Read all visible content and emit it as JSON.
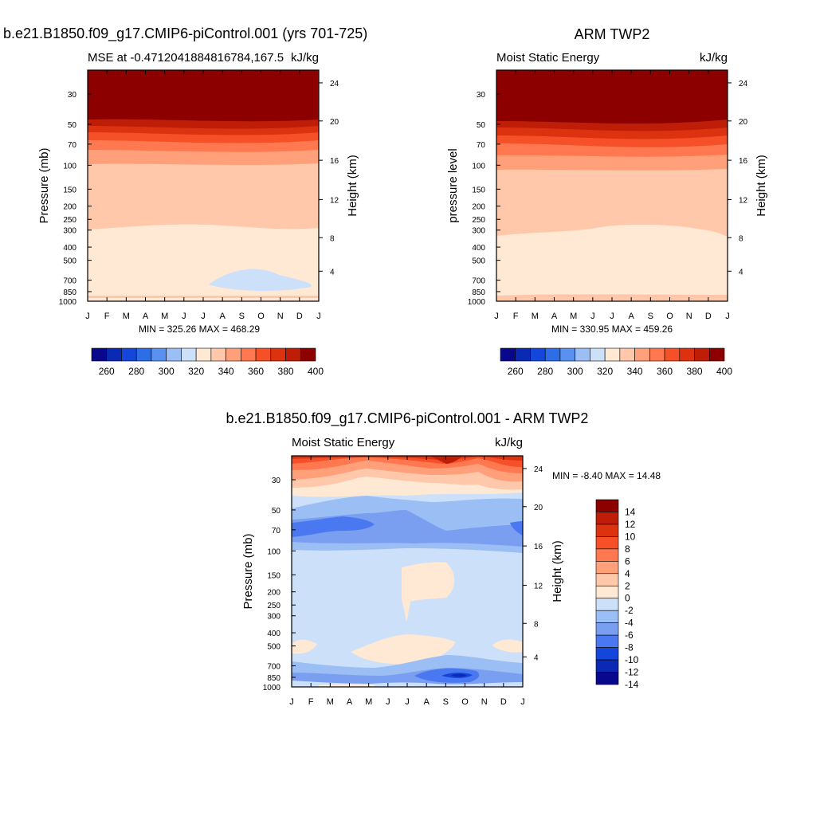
{
  "chart_data": [
    {
      "type": "heatmap",
      "title": "b.e21.B1850.f09_g17.CMIP6-piControl.001 (yrs 701-725)",
      "subtitle_left": "MSE at -0.4712041884816784,167.5",
      "subtitle_right": "kJ/kg",
      "ylabel": "Pressure (mb)",
      "y2label": "Height (km)",
      "x_ticks": [
        "J",
        "F",
        "M",
        "A",
        "M",
        "J",
        "J",
        "A",
        "S",
        "O",
        "N",
        "D",
        "J"
      ],
      "y_ticks": [
        "30",
        "50",
        "70",
        "100",
        "150",
        "200",
        "250",
        "300",
        "400",
        "500",
        "700",
        "850",
        "1000"
      ],
      "y2_ticks": [
        "24",
        "20",
        "16",
        "12",
        "8",
        "4"
      ],
      "stats": "MIN = 325.26 MAX = 468.29",
      "min": 325.26,
      "max": 468.29,
      "colorbar": {
        "labels": [
          "260",
          "280",
          "300",
          "320",
          "340",
          "360",
          "380",
          "400"
        ],
        "levels": [
          250,
          260,
          270,
          280,
          290,
          300,
          310,
          320,
          330,
          340,
          350,
          360,
          370,
          380,
          390,
          400,
          410
        ],
        "colors": [
          "#08088c",
          "#0a2ab4",
          "#1446dc",
          "#2d6ee6",
          "#5a91f0",
          "#9bbef5",
          "#cde0f9",
          "#ffe8d4",
          "#ffc8aa",
          "#ffa07a",
          "#ff7850",
          "#f55028",
          "#dc3210",
          "#be1e08",
          "#8c0000"
        ]
      }
    },
    {
      "type": "heatmap",
      "title": "ARM TWP2",
      "subtitle_left": "Moist Static Energy",
      "subtitle_right": "kJ/kg",
      "ylabel": "pressure level",
      "y2label": "Height (km)",
      "x_ticks": [
        "J",
        "F",
        "M",
        "A",
        "M",
        "J",
        "J",
        "A",
        "S",
        "O",
        "N",
        "D",
        "J"
      ],
      "y_ticks": [
        "30",
        "50",
        "70",
        "100",
        "150",
        "200",
        "250",
        "300",
        "400",
        "500",
        "700",
        "850",
        "1000"
      ],
      "y2_ticks": [
        "24",
        "20",
        "16",
        "12",
        "8",
        "4"
      ],
      "stats": "MIN = 330.95 MAX = 459.26",
      "min": 330.95,
      "max": 459.26,
      "colorbar": {
        "labels": [
          "260",
          "280",
          "300",
          "320",
          "340",
          "360",
          "380",
          "400"
        ]
      }
    },
    {
      "type": "heatmap",
      "title": "b.e21.B1850.f09_g17.CMIP6-piControl.001 - ARM TWP2",
      "subtitle_left": "Moist Static Energy",
      "subtitle_right": "kJ/kg",
      "ylabel": "Pressure (mb)",
      "y2label": "Height (km)",
      "x_ticks": [
        "J",
        "F",
        "M",
        "A",
        "M",
        "J",
        "J",
        "A",
        "S",
        "O",
        "N",
        "D",
        "J"
      ],
      "y_ticks": [
        "30",
        "50",
        "70",
        "100",
        "150",
        "200",
        "250",
        "300",
        "400",
        "500",
        "700",
        "850",
        "1000"
      ],
      "y2_ticks": [
        "24",
        "20",
        "16",
        "12",
        "8",
        "4"
      ],
      "stats": "MIN =  -8.40 MAX =  14.48",
      "min": -8.4,
      "max": 14.48,
      "colorbar": {
        "labels": [
          "14",
          "12",
          "10",
          "8",
          "6",
          "4",
          "2",
          "0",
          "-2",
          "-4",
          "-6",
          "-8",
          "-10",
          "-12",
          "-14"
        ],
        "colors": [
          "#8c0000",
          "#be1e08",
          "#dc3210",
          "#f55028",
          "#ff7850",
          "#ffa07a",
          "#ffc8aa",
          "#ffe8d4",
          "#cde0f9",
          "#9bbef5",
          "#7b9ff0",
          "#4a78f0",
          "#1446dc",
          "#0a2ab4",
          "#08088c"
        ]
      }
    }
  ]
}
